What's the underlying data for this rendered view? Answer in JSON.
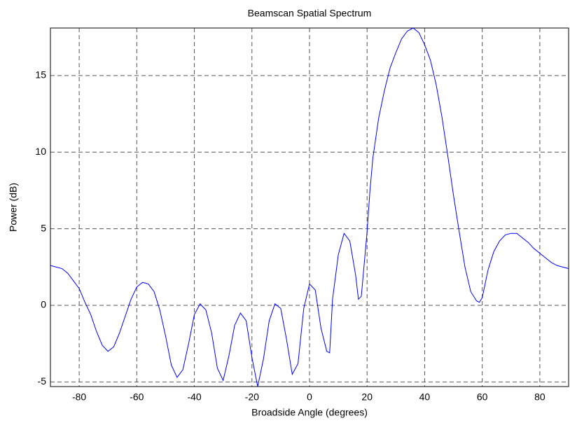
{
  "chart_data": {
    "type": "line",
    "title": "Beamscan Spatial Spectrum",
    "x_label": "Broadside Angle (degrees)",
    "y_label": "Power (dB)",
    "x": [
      -90,
      -86,
      -84,
      -82,
      -80,
      -78,
      -76,
      -74,
      -72,
      -70,
      -68,
      -66,
      -64,
      -62,
      -60,
      -58,
      -56,
      -54,
      -52,
      -50,
      -48,
      -46,
      -44,
      -42,
      -40,
      -38,
      -36,
      -34,
      -32,
      -30,
      -28,
      -26,
      -24,
      -22,
      -20,
      -18,
      -16,
      -14,
      -12,
      -10,
      -8,
      -6,
      -4,
      -2,
      0,
      2,
      4,
      6,
      7,
      8,
      10,
      12,
      14,
      16,
      17,
      18,
      20,
      21,
      22,
      24,
      26,
      28,
      30,
      32,
      34,
      36,
      38,
      40,
      42,
      44,
      46,
      48,
      50,
      52,
      54,
      56,
      58,
      59,
      60,
      62,
      64,
      66,
      68,
      70,
      72,
      74,
      76,
      78,
      80,
      82,
      84,
      86,
      88,
      90
    ],
    "series": [
      {
        "name": "Power",
        "color": "#0000ff",
        "values": [
          2.6,
          2.4,
          2.1,
          1.6,
          1.1,
          0.2,
          -0.6,
          -1.7,
          -2.6,
          -3.0,
          -2.7,
          -1.8,
          -0.7,
          0.4,
          1.2,
          1.5,
          1.4,
          0.9,
          -0.3,
          -2.0,
          -3.9,
          -4.7,
          -4.2,
          -2.5,
          -0.6,
          0.1,
          -0.3,
          -1.8,
          -4.1,
          -4.9,
          -3.3,
          -1.3,
          -0.5,
          -1.0,
          -3.4,
          -5.3,
          -3.5,
          -1.0,
          0.1,
          -0.2,
          -2.2,
          -4.5,
          -3.8,
          -0.2,
          1.4,
          1.0,
          -1.5,
          -3.0,
          -3.1,
          0.4,
          3.3,
          4.7,
          4.2,
          2.0,
          0.4,
          0.6,
          4.8,
          7.5,
          9.6,
          12.2,
          14.0,
          15.5,
          16.5,
          17.4,
          17.9,
          18.1,
          17.8,
          17.0,
          16.0,
          14.4,
          12.3,
          9.8,
          7.2,
          4.8,
          2.5,
          0.9,
          0.3,
          0.2,
          0.5,
          2.3,
          3.5,
          4.2,
          4.6,
          4.7,
          4.7,
          4.4,
          4.1,
          3.7,
          3.4,
          3.1,
          2.8,
          2.6,
          2.5,
          2.4
        ]
      }
    ],
    "xlim": [
      -90,
      90
    ],
    "xticks": [
      -80,
      -60,
      -40,
      -20,
      0,
      20,
      40,
      60,
      80
    ],
    "ylim": [
      -5.3,
      18.1
    ],
    "yticks": [
      -5,
      0,
      5,
      10,
      15
    ],
    "grid": true
  }
}
